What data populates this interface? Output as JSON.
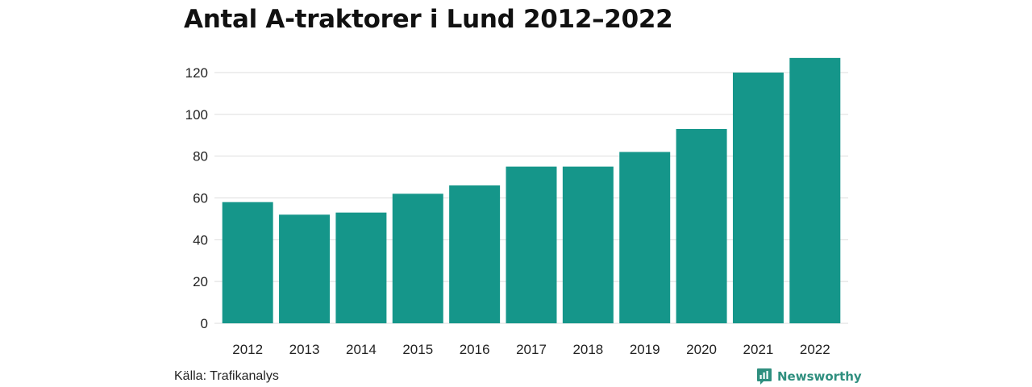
{
  "chart_data": {
    "type": "bar",
    "title": "Antal A-traktorer i Lund 2012–2022",
    "categories": [
      "2012",
      "2013",
      "2014",
      "2015",
      "2016",
      "2017",
      "2018",
      "2019",
      "2020",
      "2021",
      "2022"
    ],
    "values": [
      58,
      52,
      53,
      62,
      66,
      75,
      75,
      82,
      93,
      120,
      127
    ],
    "yticks": [
      "0",
      "20",
      "40",
      "60",
      "80",
      "100",
      "120"
    ],
    "ylim": [
      0,
      130
    ],
    "grid": true,
    "bar_color": "#15968a",
    "xlabel": "",
    "ylabel": ""
  },
  "footer": {
    "source": "Källa: Trafikanalys",
    "brand": "Newsworthy",
    "brand_color": "#2f8f7f"
  }
}
